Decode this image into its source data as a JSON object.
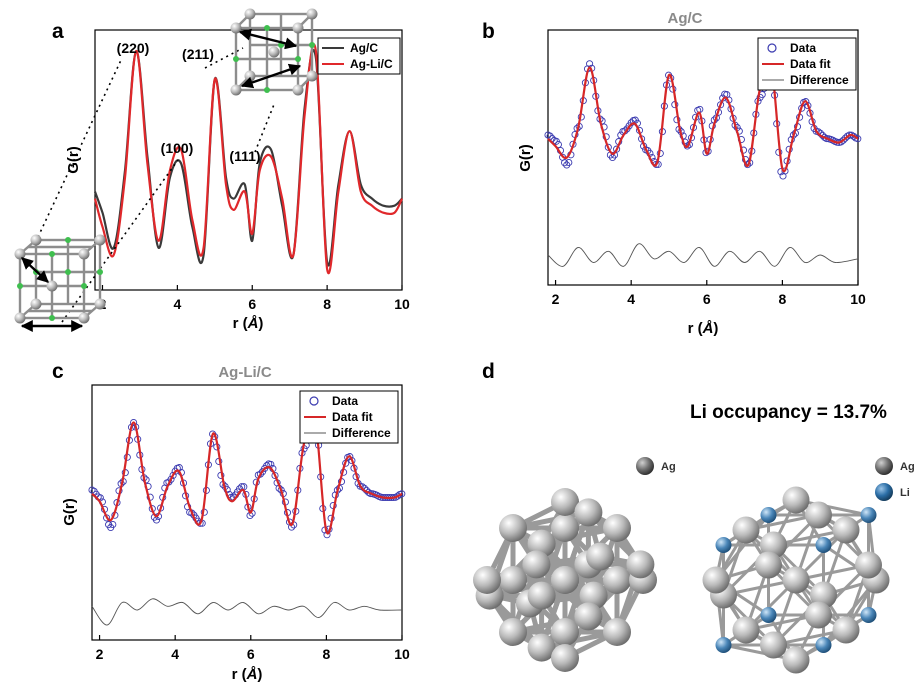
{
  "panel_labels": {
    "a": "a",
    "b": "b",
    "c": "c",
    "d": "d"
  },
  "colors": {
    "ag_c": "#3a3a3a",
    "ag_li_c": "#e0282b",
    "data_marker": "#3b3bb0",
    "fit": "#d62728",
    "difference": "#555555",
    "ag_atom": "#b8b8b8",
    "li_atom": "#4a86b8"
  },
  "xlabel_parts": [
    "r (",
    "Å",
    ")"
  ],
  "ylabel": "G(r)",
  "annotations": {
    "p220": "(220)",
    "p211": "(211)",
    "p100": "(100)",
    "p111": "(111)"
  },
  "crystal": {
    "occupancy_text": "Li occupancy = 13.7%",
    "legend_left": {
      "ag": "Ag"
    },
    "legend_right": {
      "ag": "Ag",
      "li": "Li"
    }
  },
  "chart_data": [
    {
      "id": "a",
      "type": "line",
      "title": "",
      "xlabel": "r (Å)",
      "ylabel": "G(r)",
      "xlim": [
        1.8,
        10
      ],
      "xticks": [
        2,
        4,
        6,
        8,
        10
      ],
      "legend": {
        "position": "top-right"
      },
      "series": [
        {
          "name": "Ag/C",
          "x": [
            1.8,
            2.0,
            2.3,
            2.6,
            2.9,
            3.2,
            3.5,
            3.8,
            4.1,
            4.4,
            4.7,
            5.0,
            5.3,
            5.5,
            5.8,
            6.0,
            6.2,
            6.5,
            6.8,
            7.1,
            7.4,
            7.7,
            8.0,
            8.3,
            8.6,
            8.9,
            9.2,
            9.5,
            9.8,
            10.0
          ],
          "y": [
            -0.05,
            -0.2,
            -0.45,
            0.1,
            0.95,
            0.2,
            -0.45,
            0.05,
            0.15,
            -0.3,
            -0.5,
            0.75,
            0.05,
            -0.1,
            0.0,
            -0.4,
            0.15,
            0.25,
            -0.15,
            -0.5,
            0.55,
            0.9,
            -0.55,
            0.0,
            0.38,
            0.0,
            -0.1,
            -0.15,
            -0.15,
            -0.1
          ]
        },
        {
          "name": "Ag-Li/C",
          "x": [
            1.8,
            2.0,
            2.3,
            2.6,
            2.9,
            3.2,
            3.5,
            3.8,
            4.1,
            4.4,
            4.7,
            5.0,
            5.3,
            5.5,
            5.8,
            6.0,
            6.2,
            6.5,
            6.8,
            7.1,
            7.4,
            7.7,
            8.0,
            8.3,
            8.6,
            8.9,
            9.2,
            9.5,
            9.8,
            10.0
          ],
          "y": [
            -0.1,
            -0.3,
            -0.5,
            0.05,
            0.95,
            0.15,
            -0.4,
            0.1,
            0.25,
            -0.25,
            -0.45,
            0.75,
            0.0,
            -0.18,
            -0.05,
            -0.35,
            0.1,
            0.2,
            -0.1,
            -0.5,
            0.5,
            0.95,
            -0.6,
            -0.05,
            0.38,
            -0.05,
            -0.15,
            -0.2,
            -0.2,
            -0.1
          ]
        }
      ]
    },
    {
      "id": "b",
      "type": "line",
      "title": "Ag/C",
      "xlabel": "r (Å)",
      "ylabel": "G(r)",
      "xlim": [
        1.8,
        10
      ],
      "xticks": [
        2,
        4,
        6,
        8,
        10
      ],
      "legend": {
        "position": "top-right"
      },
      "series": [
        {
          "name": "Data",
          "marker": "open-circle",
          "x": [
            1.8,
            2.0,
            2.3,
            2.6,
            2.9,
            3.2,
            3.5,
            3.8,
            4.1,
            4.4,
            4.7,
            5.0,
            5.3,
            5.5,
            5.8,
            6.0,
            6.2,
            6.5,
            6.8,
            7.1,
            7.4,
            7.7,
            8.0,
            8.3,
            8.6,
            8.9,
            9.2,
            9.5,
            9.8,
            10.0
          ],
          "y": [
            0.0,
            -0.08,
            -0.4,
            0.1,
            0.95,
            0.2,
            -0.3,
            0.05,
            0.2,
            -0.2,
            -0.4,
            0.8,
            0.05,
            -0.15,
            0.35,
            -0.25,
            0.2,
            0.55,
            0.1,
            -0.4,
            0.5,
            0.85,
            -0.55,
            0.0,
            0.45,
            0.05,
            -0.05,
            -0.1,
            0.0,
            -0.05
          ]
        },
        {
          "name": "Data fit",
          "x": [
            1.8,
            2.0,
            2.3,
            2.6,
            2.9,
            3.2,
            3.5,
            3.8,
            4.1,
            4.4,
            4.7,
            5.0,
            5.3,
            5.5,
            5.8,
            6.0,
            6.2,
            6.5,
            6.8,
            7.1,
            7.4,
            7.7,
            8.0,
            8.3,
            8.6,
            8.9,
            9.2,
            9.5,
            9.8,
            10.0
          ],
          "y": [
            -0.05,
            -0.15,
            -0.3,
            0.1,
            0.9,
            0.15,
            -0.25,
            0.0,
            0.15,
            -0.2,
            -0.35,
            0.8,
            0.05,
            -0.15,
            0.3,
            -0.25,
            0.15,
            0.5,
            0.05,
            -0.4,
            0.6,
            0.95,
            -0.45,
            0.0,
            0.45,
            0.05,
            -0.05,
            -0.1,
            0.0,
            -0.05
          ]
        },
        {
          "name": "Difference",
          "x": [
            1.8,
            2.2,
            2.6,
            3.0,
            3.4,
            3.8,
            4.2,
            4.6,
            5.0,
            5.4,
            5.8,
            6.2,
            6.6,
            7.0,
            7.4,
            7.8,
            8.2,
            8.6,
            9.0,
            9.4,
            10.0
          ],
          "y": [
            -1.6,
            -1.75,
            -1.5,
            -1.7,
            -1.55,
            -1.75,
            -1.45,
            -1.65,
            -1.55,
            -1.7,
            -1.5,
            -1.75,
            -1.55,
            -1.7,
            -1.55,
            -1.75,
            -1.5,
            -1.7,
            -1.6,
            -1.7,
            -1.65
          ]
        }
      ]
    },
    {
      "id": "c",
      "type": "line",
      "title": "Ag-Li/C",
      "xlabel": "r (Å)",
      "ylabel": "G(r)",
      "xlim": [
        1.8,
        10
      ],
      "xticks": [
        2,
        4,
        6,
        8,
        10
      ],
      "legend": {
        "position": "top-right"
      },
      "series": [
        {
          "name": "Data",
          "marker": "open-circle",
          "x": [
            1.8,
            2.0,
            2.3,
            2.6,
            2.9,
            3.2,
            3.5,
            3.8,
            4.1,
            4.4,
            4.7,
            5.0,
            5.3,
            5.5,
            5.8,
            6.0,
            6.2,
            6.5,
            6.8,
            7.1,
            7.4,
            7.7,
            8.0,
            8.3,
            8.6,
            8.9,
            9.2,
            9.5,
            9.8,
            10.0
          ],
          "y": [
            0.0,
            -0.1,
            -0.5,
            0.1,
            0.9,
            0.15,
            -0.4,
            0.1,
            0.3,
            -0.3,
            -0.45,
            0.75,
            0.05,
            -0.1,
            0.05,
            -0.35,
            0.2,
            0.35,
            0.0,
            -0.5,
            0.55,
            0.95,
            -0.6,
            0.0,
            0.45,
            0.05,
            -0.05,
            -0.1,
            -0.1,
            -0.05
          ]
        },
        {
          "name": "Data fit",
          "x": [
            1.8,
            2.0,
            2.3,
            2.6,
            2.9,
            3.2,
            3.5,
            3.8,
            4.1,
            4.4,
            4.7,
            5.0,
            5.3,
            5.5,
            5.8,
            6.0,
            6.2,
            6.5,
            6.8,
            7.1,
            7.4,
            7.7,
            8.0,
            8.3,
            8.6,
            8.9,
            9.2,
            9.5,
            9.8,
            10.0
          ],
          "y": [
            -0.05,
            -0.15,
            -0.4,
            0.1,
            0.9,
            0.1,
            -0.35,
            0.05,
            0.25,
            -0.25,
            -0.4,
            0.75,
            0.05,
            -0.15,
            0.0,
            -0.3,
            0.15,
            0.3,
            0.0,
            -0.45,
            0.6,
            0.95,
            -0.55,
            0.0,
            0.45,
            0.05,
            -0.05,
            -0.1,
            -0.1,
            -0.05
          ]
        },
        {
          "name": "Difference",
          "x": [
            1.8,
            2.2,
            2.6,
            3.0,
            3.4,
            3.8,
            4.2,
            4.6,
            5.0,
            5.4,
            5.8,
            6.2,
            6.6,
            7.0,
            7.4,
            7.8,
            8.2,
            8.6,
            9.0,
            9.4,
            10.0
          ],
          "y": [
            -1.55,
            -1.8,
            -1.5,
            -1.6,
            -1.45,
            -1.55,
            -1.5,
            -1.65,
            -1.5,
            -1.6,
            -1.5,
            -1.65,
            -1.55,
            -1.6,
            -1.55,
            -1.7,
            -1.5,
            -1.6,
            -1.55,
            -1.6,
            -1.6
          ]
        }
      ]
    }
  ]
}
